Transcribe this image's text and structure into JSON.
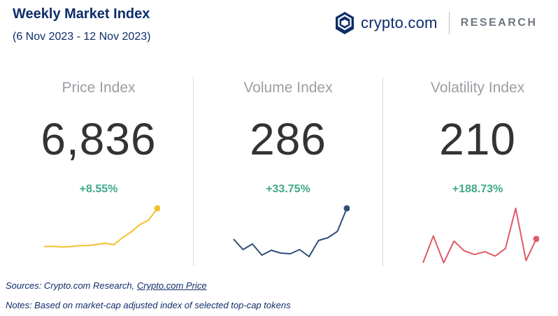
{
  "header": {
    "title": "Weekly Market Index",
    "subtitle": "(6 Nov 2023 - 12 Nov 2023)"
  },
  "brand": {
    "name": "crypto.com",
    "suffix": "RESEARCH",
    "logo_icon": "crypto-com-shield-icon"
  },
  "colors": {
    "title": "#0e2d6a",
    "change_positive": "#41a98a",
    "price_line": "#f2c12e",
    "volume_line": "#2f4d78",
    "volatility_line": "#e05a68"
  },
  "footer": {
    "sources_prefix": "Sources: Crypto.com Research, ",
    "sources_link": "Crypto.com Price",
    "notes": "Notes: Based on market-cap adjusted index of selected top-cap tokens"
  },
  "chart_data": [
    {
      "type": "line",
      "title": "Price Index",
      "value": "6,836",
      "change": "+8.55%",
      "color": "#f2c12e",
      "values": [
        12.0,
        12.2,
        11.8,
        12.0,
        12.6,
        12.7,
        13.4,
        14.3,
        13.3,
        18.0,
        22.0,
        27.0,
        30.0,
        38.0
      ]
    },
    {
      "type": "line",
      "title": "Volume Index",
      "value": "286",
      "change": "+33.75%",
      "color": "#2f4d78",
      "values": [
        36,
        21,
        29,
        13,
        20,
        16,
        15,
        21,
        11,
        34,
        38,
        47,
        80
      ]
    },
    {
      "type": "line",
      "title": "Volatility Index",
      "value": "210",
      "change": "+188.73%",
      "color": "#e05a68",
      "values": [
        2,
        38,
        2,
        31,
        18,
        13,
        17,
        11,
        21,
        75,
        5,
        34
      ]
    }
  ]
}
